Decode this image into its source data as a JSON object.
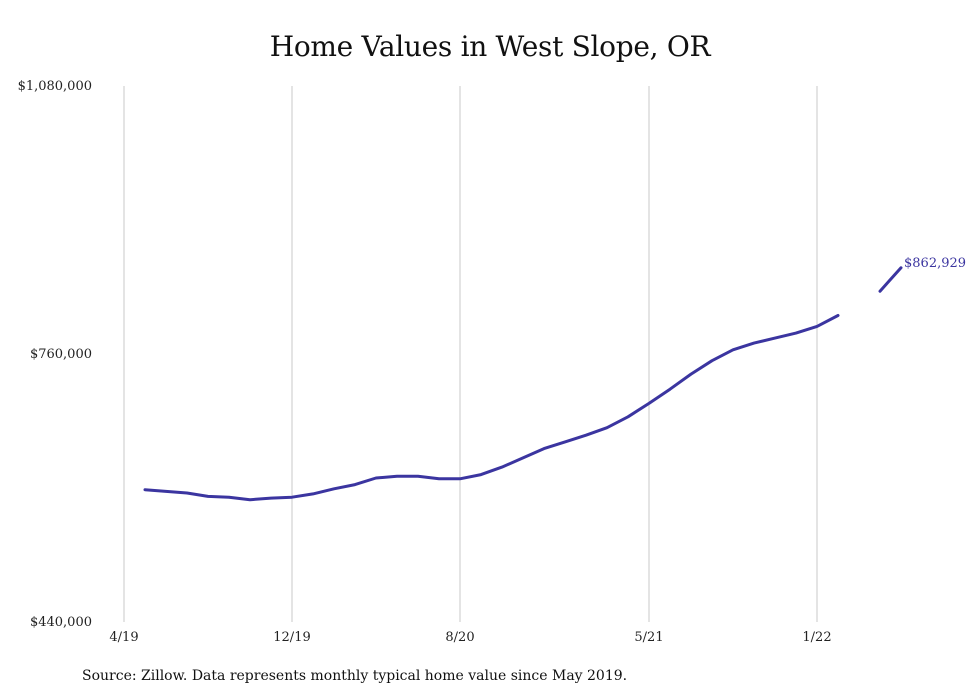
{
  "chart_data": {
    "type": "line",
    "title": "Home Values in West Slope, OR",
    "xlabel": "",
    "ylabel": "",
    "x_ticks": [
      "4/19",
      "12/19",
      "8/20",
      "5/21",
      "1/22"
    ],
    "y_ticks": [
      "$1,080,000",
      "$760,000",
      "$440,000"
    ],
    "ylim": [
      440000,
      1080000
    ],
    "grid": "vertical",
    "line_color": "#3b35a0",
    "series": [
      {
        "segments": [
          [
            {
              "x": "2019-05",
              "y": 598000
            },
            {
              "x": "2019-06",
              "y": 596000
            },
            {
              "x": "2019-07",
              "y": 594000
            },
            {
              "x": "2019-08",
              "y": 590000
            },
            {
              "x": "2019-09",
              "y": 589000
            },
            {
              "x": "2019-10",
              "y": 586000
            },
            {
              "x": "2019-11",
              "y": 588000
            },
            {
              "x": "2019-12",
              "y": 589000
            },
            {
              "x": "2020-01",
              "y": 593000
            },
            {
              "x": "2020-02",
              "y": 599000
            },
            {
              "x": "2020-03",
              "y": 604000
            },
            {
              "x": "2020-04",
              "y": 612000
            },
            {
              "x": "2020-05",
              "y": 614000
            },
            {
              "x": "2020-06",
              "y": 614000
            },
            {
              "x": "2020-07",
              "y": 611000
            },
            {
              "x": "2020-08",
              "y": 611000
            },
            {
              "x": "2020-09",
              "y": 616000
            },
            {
              "x": "2020-10",
              "y": 625000
            },
            {
              "x": "2020-11",
              "y": 636000
            },
            {
              "x": "2020-12",
              "y": 647000
            },
            {
              "x": "2021-01",
              "y": 655000
            },
            {
              "x": "2021-02",
              "y": 663000
            },
            {
              "x": "2021-03",
              "y": 672000
            },
            {
              "x": "2021-04",
              "y": 685000
            },
            {
              "x": "2021-05",
              "y": 701000
            },
            {
              "x": "2021-06",
              "y": 718000
            },
            {
              "x": "2021-07",
              "y": 736000
            },
            {
              "x": "2021-08",
              "y": 752000
            },
            {
              "x": "2021-09",
              "y": 765000
            },
            {
              "x": "2021-10",
              "y": 773000
            },
            {
              "x": "2021-11",
              "y": 779000
            },
            {
              "x": "2021-12",
              "y": 785000
            },
            {
              "x": "2022-01",
              "y": 793000
            },
            {
              "x": "2022-02",
              "y": 806000
            }
          ],
          [
            {
              "x": "2022-04",
              "y": 835000
            },
            {
              "x": "2022-05",
              "y": 862929
            }
          ]
        ]
      }
    ],
    "end_label": "$862,929"
  },
  "caption": "Source: Zillow. Data represents monthly typical home value since May 2019."
}
